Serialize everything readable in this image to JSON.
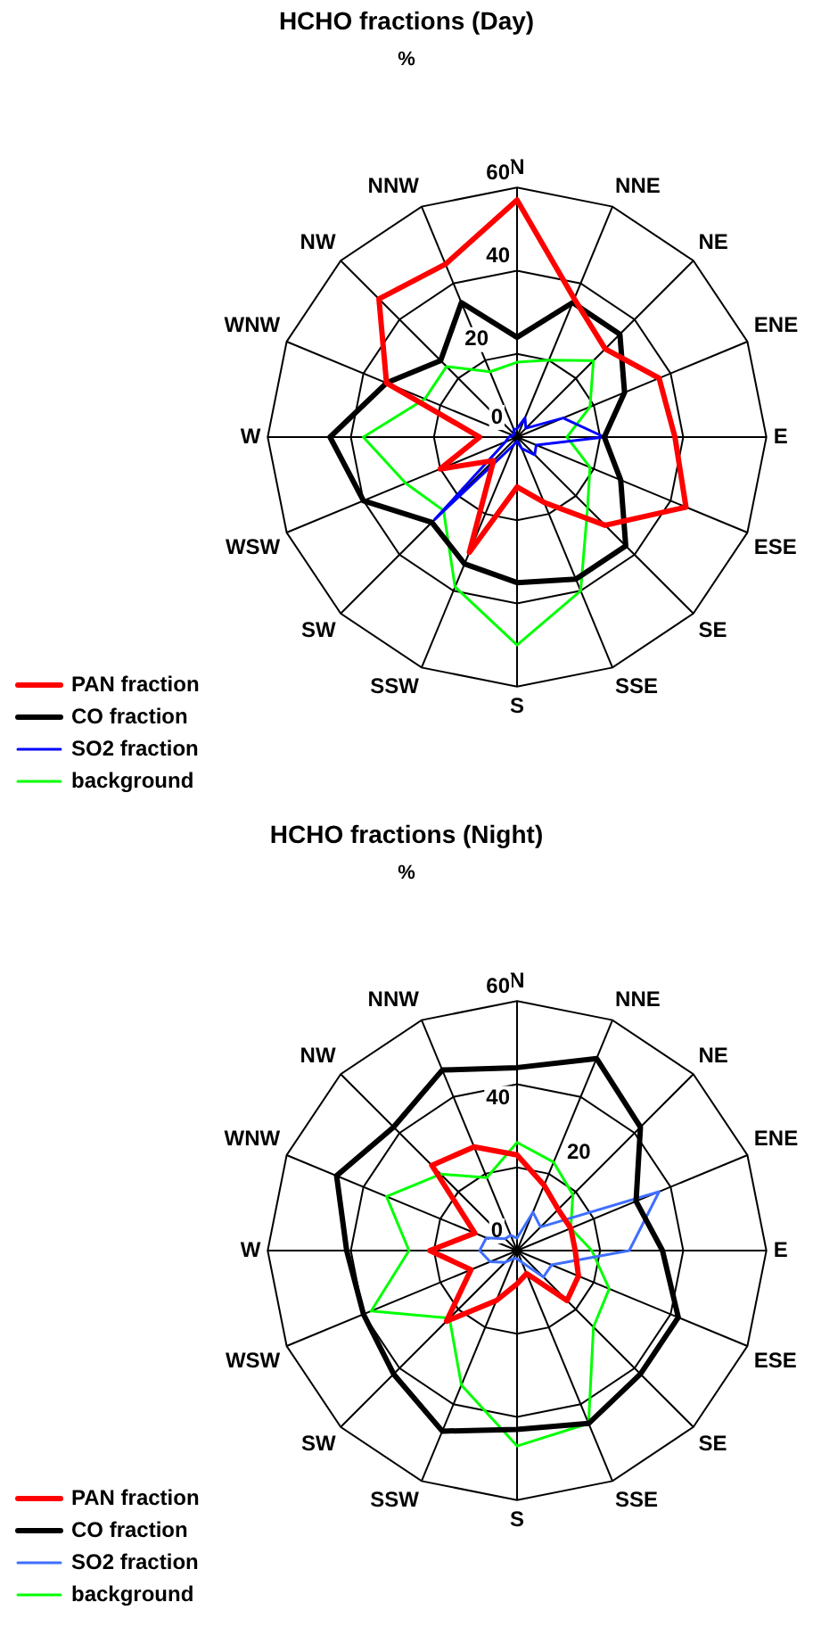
{
  "chart_data": [
    {
      "type": "radar",
      "title": "HCHO fractions (Day)",
      "ylabel": "%",
      "categories": [
        "N",
        "NNE",
        "NE",
        "ENE",
        "E",
        "ESE",
        "SE",
        "SSE",
        "S",
        "SSW",
        "SW",
        "WSW",
        "W",
        "WNW",
        "NW",
        "NNW"
      ],
      "ylim": [
        0,
        60
      ],
      "yticks": [
        0,
        20,
        40,
        60
      ],
      "grid": true,
      "legend": "bottom left",
      "series": [
        {
          "name": "PAN fraction",
          "color": "#ff0000",
          "values": [
            57,
            36,
            30,
            37,
            38,
            44,
            30,
            17,
            12,
            30,
            8,
            20,
            9,
            34,
            47,
            45
          ]
        },
        {
          "name": "CO fraction",
          "color": "#000000",
          "values": [
            24,
            35,
            35,
            28,
            21,
            27,
            37,
            37,
            35,
            33,
            29,
            40,
            45,
            34,
            26,
            35
          ]
        },
        {
          "name": "SO2 fraction",
          "color": "#0000ff",
          "values": [
            2,
            5,
            3,
            12,
            21,
            5,
            6,
            3,
            1,
            2,
            28,
            3,
            2,
            1,
            1,
            2
          ]
        },
        {
          "name": "background",
          "color": "#00ff00",
          "values": [
            18,
            20,
            26,
            19,
            12,
            19,
            24,
            40,
            50,
            39,
            25,
            29,
            37,
            24,
            24,
            17
          ]
        }
      ]
    },
    {
      "type": "radar",
      "title": "HCHO fractions (Night)",
      "ylabel": "%",
      "categories": [
        "N",
        "NNE",
        "NE",
        "ENE",
        "E",
        "ESE",
        "SE",
        "SSE",
        "S",
        "SSW",
        "SW",
        "WSW",
        "W",
        "WNW",
        "NW",
        "NNW"
      ],
      "ylim": [
        0,
        60
      ],
      "yticks": [
        0,
        20,
        40,
        60
      ],
      "grid": true,
      "legend": "bottom left",
      "series": [
        {
          "name": "PAN fraction",
          "color": "#ff0000",
          "values": [
            23,
            17,
            14,
            14,
            14,
            16,
            17,
            6,
            8,
            13,
            24,
            12,
            21,
            11,
            29,
            27
          ]
        },
        {
          "name": "CO fraction",
          "color": "#000000",
          "values": [
            44,
            50,
            42,
            31,
            35,
            42,
            42,
            45,
            43,
            47,
            42,
            40,
            41,
            47,
            42,
            47
          ]
        },
        {
          "name": "SO2 fraction",
          "color": "#3f6fff",
          "values": [
            3,
            10,
            8,
            37,
            27,
            9,
            9,
            3,
            2,
            2,
            4,
            7,
            9,
            8,
            4,
            4
          ]
        },
        {
          "name": "background",
          "color": "#00ff00",
          "values": [
            26,
            23,
            19,
            14,
            18,
            24,
            26,
            45,
            47,
            35,
            23,
            38,
            26,
            34,
            26,
            19
          ]
        }
      ]
    }
  ]
}
